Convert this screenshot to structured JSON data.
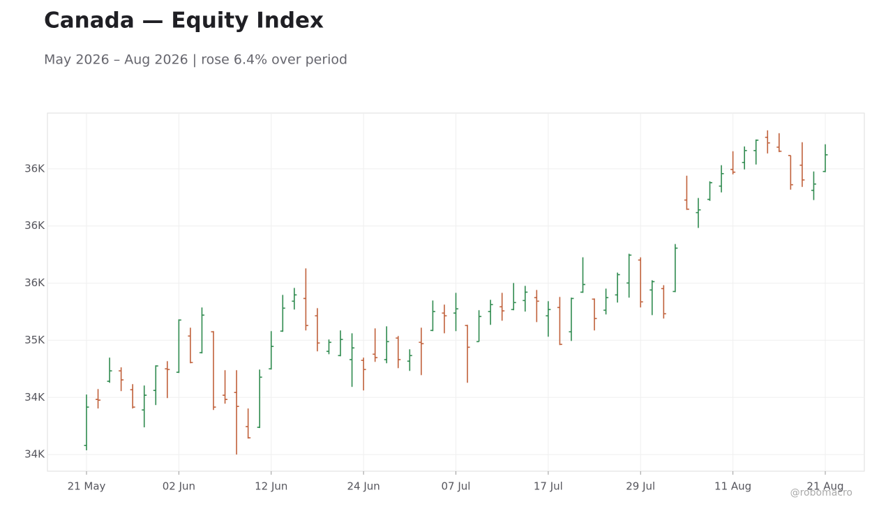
{
  "chart_data": {
    "type": "ohlc",
    "title": "Canada — Equity Index",
    "subtitle": "May 2026 – Aug 2026 | rose 6.4% over period",
    "watermark": "@robomacro",
    "categories": [
      "21 May",
      null,
      null,
      null,
      null,
      null,
      null,
      null,
      "02 Jun",
      null,
      null,
      null,
      null,
      null,
      null,
      null,
      "12 Jun",
      null,
      null,
      null,
      null,
      null,
      null,
      null,
      "24 Jun",
      null,
      null,
      null,
      null,
      null,
      null,
      null,
      "07 Jul",
      null,
      null,
      null,
      null,
      null,
      null,
      null,
      "17 Jul",
      null,
      null,
      null,
      null,
      null,
      null,
      null,
      "29 Jul",
      null,
      null,
      null,
      null,
      null,
      null,
      null,
      "11 Aug",
      null,
      null,
      null,
      null,
      null,
      null,
      null,
      "21 Aug"
    ],
    "open": [
      34079,
      34482,
      34641,
      34732,
      34567,
      34390,
      34561,
      34750,
      34720,
      35037,
      34891,
      35074,
      34519,
      34543,
      34244,
      34238,
      34750,
      35080,
      35342,
      35366,
      35214,
      34903,
      34866,
      34830,
      34824,
      34878,
      34830,
      35019,
      34817,
      34982,
      35086,
      35238,
      35238,
      35129,
      34988,
      35251,
      35293,
      35269,
      35348,
      35373,
      35214,
      35287,
      35074,
      35421,
      35360,
      35263,
      35397,
      35501,
      35702,
      35440,
      35452,
      35427,
      36227,
      36117,
      36233,
      36349,
      36495,
      36556,
      36660,
      36776,
      36690,
      36617,
      36532,
      36312,
      36477
    ],
    "high": [
      34525,
      34573,
      34848,
      34763,
      34616,
      34604,
      34781,
      34817,
      35183,
      35110,
      35287,
      35080,
      34738,
      34738,
      34403,
      34744,
      35080,
      35397,
      35458,
      35629,
      35281,
      35007,
      35086,
      35061,
      34848,
      35104,
      35122,
      35037,
      34921,
      35110,
      35348,
      35312,
      35415,
      35135,
      35263,
      35354,
      35415,
      35501,
      35476,
      35440,
      35342,
      35379,
      35373,
      35726,
      35366,
      35452,
      35592,
      35757,
      35726,
      35525,
      35482,
      35842,
      36440,
      36245,
      36391,
      36532,
      36654,
      36696,
      36757,
      36837,
      36812,
      36617,
      36733,
      36477,
      36715
    ],
    "low": [
      34037,
      34403,
      34628,
      34555,
      34403,
      34238,
      34433,
      34494,
      34714,
      34799,
      34885,
      34390,
      34445,
      34000,
      34140,
      34232,
      34744,
      35074,
      35269,
      35086,
      34903,
      34878,
      34860,
      34592,
      34561,
      34811,
      34799,
      34756,
      34732,
      34695,
      35080,
      35061,
      35080,
      34628,
      34988,
      35135,
      35171,
      35263,
      35251,
      35159,
      35031,
      34958,
      34994,
      35415,
      35086,
      35226,
      35330,
      35373,
      35287,
      35220,
      35190,
      35421,
      36141,
      35983,
      36220,
      36294,
      36452,
      36495,
      36538,
      36635,
      36647,
      36318,
      36342,
      36227,
      36471
    ],
    "close": [
      34415,
      34476,
      34732,
      34653,
      34415,
      34519,
      34775,
      34744,
      35177,
      34805,
      35220,
      34415,
      34482,
      34421,
      34146,
      34677,
      34946,
      35281,
      35397,
      35129,
      34976,
      34982,
      35007,
      34933,
      34744,
      34848,
      34988,
      34830,
      34866,
      34970,
      35251,
      35214,
      35275,
      34939,
      35208,
      35312,
      35257,
      35330,
      35421,
      35342,
      35269,
      34964,
      35366,
      35488,
      35190,
      35373,
      35574,
      35745,
      35336,
      35513,
      35232,
      35806,
      36147,
      36141,
      36379,
      36458,
      36471,
      36660,
      36751,
      36727,
      36654,
      36361,
      36403,
      36367,
      36623
    ],
    "up_color": "#2e8a4e",
    "down_color": "#c0603a",
    "ylim": [
      33854,
      36988
    ],
    "yticks": [
      {
        "value": 34000,
        "label": "34K"
      },
      {
        "value": 34500,
        "label": "34K"
      },
      {
        "value": 35000,
        "label": "35K"
      },
      {
        "value": 35500,
        "label": "36K"
      },
      {
        "value": 36000,
        "label": "36K"
      },
      {
        "value": 36500,
        "label": "36K"
      }
    ],
    "grid": true
  }
}
